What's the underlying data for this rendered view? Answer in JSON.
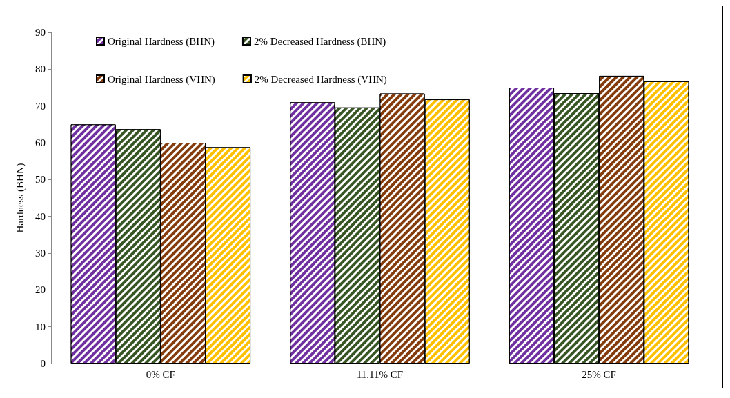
{
  "chart_data": {
    "type": "bar",
    "ylabel": "Hardness (BHN)",
    "categories": [
      "0% CF",
      "11.11% CF",
      "25% CF"
    ],
    "series": [
      {
        "name": "Original Hardness (BHN)",
        "color": "#7030a0",
        "values": [
          65,
          71,
          75
        ]
      },
      {
        "name": "2% Decreased Hardness (BHN)",
        "color": "#375623",
        "values": [
          63.7,
          69.6,
          73.5
        ]
      },
      {
        "name": "Original Hardness (VHN)",
        "color": "#843c0c",
        "values": [
          60,
          73.4,
          78.2
        ]
      },
      {
        "name": "2% Decreased Hardness (VHN)",
        "color": "#ffc000",
        "values": [
          58.8,
          71.8,
          76.7
        ]
      }
    ],
    "ylim": [
      0,
      90
    ],
    "yticks": [
      0,
      10,
      20,
      30,
      40,
      50,
      60,
      70,
      80,
      90
    ],
    "grid": false,
    "legend": "top left"
  }
}
